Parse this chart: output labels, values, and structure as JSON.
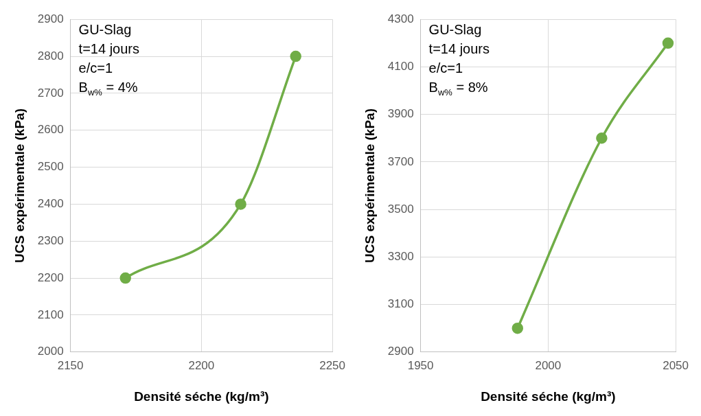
{
  "chart_data": [
    {
      "type": "line",
      "xlabel": "Densité séche (kg/m³)",
      "ylabel": "UCS expérimentale (kPa)",
      "x": [
        2171,
        2215,
        2236
      ],
      "values": [
        2200,
        2400,
        2800
      ],
      "color": "#70ad47",
      "xlim": [
        2150,
        2250
      ],
      "xticks": [
        2150,
        2200,
        2250
      ],
      "ylim": [
        2000,
        2900
      ],
      "yticks": [
        2000,
        2100,
        2200,
        2300,
        2400,
        2500,
        2600,
        2700,
        2800,
        2900
      ],
      "grid": true,
      "marker": "circle",
      "annotations": [
        "GU-Slag",
        "t=14 jours",
        "e/c=1",
        "B$_{w%}$ = 4%"
      ]
    },
    {
      "type": "line",
      "xlabel": "Densité séche (kg/m³)",
      "ylabel": "UCS expérimentale (kPa)",
      "x": [
        1988,
        2021,
        2047
      ],
      "values": [
        3000,
        3800,
        4200
      ],
      "color": "#70ad47",
      "xlim": [
        1950,
        2050
      ],
      "xticks": [
        1950,
        2000,
        2050
      ],
      "ylim": [
        2900,
        4300
      ],
      "yticks": [
        2900,
        3100,
        3300,
        3500,
        3700,
        3900,
        4100,
        4300
      ],
      "grid": true,
      "marker": "circle",
      "annotations": [
        "GU-Slag",
        "t=14 jours",
        "e/c=1",
        "B$_{w%}$ = 8%"
      ]
    }
  ]
}
